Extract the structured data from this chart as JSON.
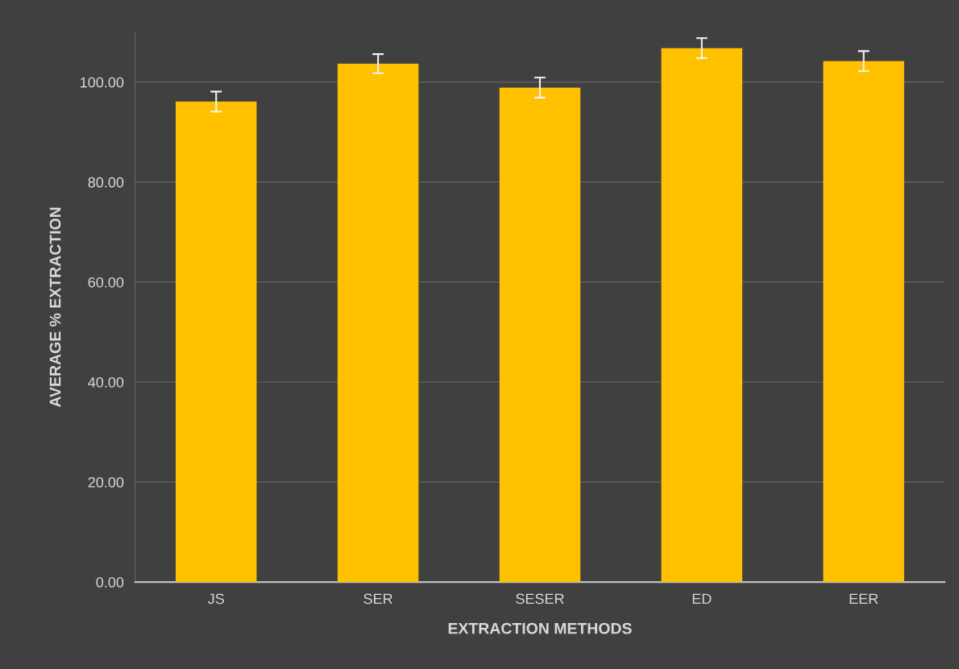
{
  "chart_data": {
    "type": "bar",
    "xlabel": "EXTRACTION METHODS",
    "ylabel": "AVERAGE % EXTRACTION",
    "categories": [
      "JS",
      "SER",
      "SESER",
      "ED",
      "EER"
    ],
    "values": [
      96.1,
      103.7,
      98.9,
      106.8,
      104.2
    ],
    "errors": [
      2.0,
      1.9,
      2.0,
      2.0,
      2.0
    ],
    "color": "#ffc000",
    "ylim": [
      0,
      110
    ],
    "yticks": [
      {
        "value": 0,
        "label": "0.00"
      },
      {
        "value": 20,
        "label": "20.00"
      },
      {
        "value": 40,
        "label": "40.00"
      },
      {
        "value": 60,
        "label": "60.00"
      },
      {
        "value": 80,
        "label": "80.00"
      },
      {
        "value": 100,
        "label": "100.00"
      }
    ],
    "grid": "y"
  }
}
